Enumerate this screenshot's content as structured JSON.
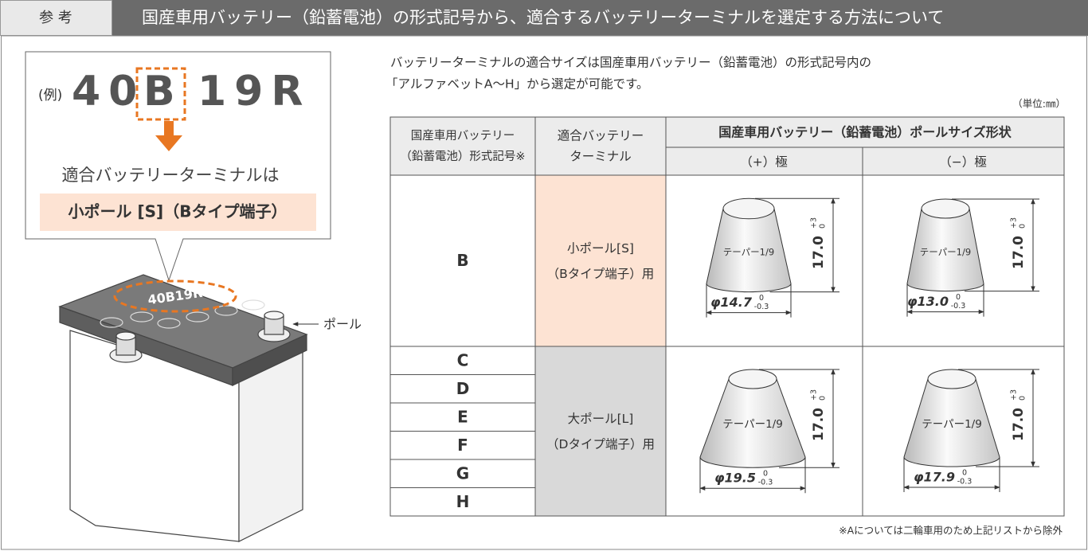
{
  "header": {
    "label": "参 考",
    "title": "国産車用バッテリー（鉛蓄電池）の形式記号から、適合するバッテリーターミナルを選定する方法について"
  },
  "example": {
    "prefix": "(例)",
    "code": [
      "40",
      "B",
      "19R"
    ],
    "caption": "適合バッテリーターミナルは",
    "result": "小ポール [S]（Bタイプ端子）"
  },
  "battery": {
    "code": "40B19R",
    "pole_label": "ポール"
  },
  "intro": [
    "バッテリーターミナルの適合サイズは国産車用バッテリー（鉛蓄電池）の形式記号内の",
    "「アルファベットA〜H」から選定が可能です。"
  ],
  "unit": "（単位:㎜）",
  "table": {
    "headers": {
      "code": [
        "国産車用バッテリー",
        "（鉛蓄電池）形式記号※"
      ],
      "terminal": [
        "適合バッテリー",
        "ターミナル"
      ],
      "pole": "国産車用バッテリー（鉛蓄電池）ポールサイズ形状",
      "plus": "（+）極",
      "minus": "（−）極"
    },
    "groups": [
      {
        "codes": [
          "B"
        ],
        "terminal": [
          "小ポール[S]",
          "（Bタイプ端子）用"
        ],
        "poles": [
          {
            "taper": "テーパー1/9",
            "height": "17.0",
            "height_tol": [
              "+3",
              "0"
            ],
            "diameter": "φ14.7",
            "diameter_tol": [
              "0",
              "-0.3"
            ]
          },
          {
            "taper": "テーパー1/9",
            "height": "17.0",
            "height_tol": [
              "+3",
              "0"
            ],
            "diameter": "φ13.0",
            "diameter_tol": [
              "0",
              "-0.3"
            ]
          }
        ]
      },
      {
        "codes": [
          "C",
          "D",
          "E",
          "F",
          "G",
          "H"
        ],
        "terminal": [
          "大ポール[L]",
          "（Dタイプ端子）用"
        ],
        "poles": [
          {
            "taper": "テーパー1/9",
            "height": "17.0",
            "height_tol": [
              "+3",
              "0"
            ],
            "diameter": "φ19.5",
            "diameter_tol": [
              "0",
              "-0.3"
            ]
          },
          {
            "taper": "テーパー1/9",
            "height": "17.0",
            "height_tol": [
              "+3",
              "0"
            ],
            "diameter": "φ17.9",
            "diameter_tol": [
              "0",
              "-0.3"
            ]
          }
        ]
      }
    ]
  },
  "footnote": "※Aについては二輪車用のため上記リストから除外"
}
